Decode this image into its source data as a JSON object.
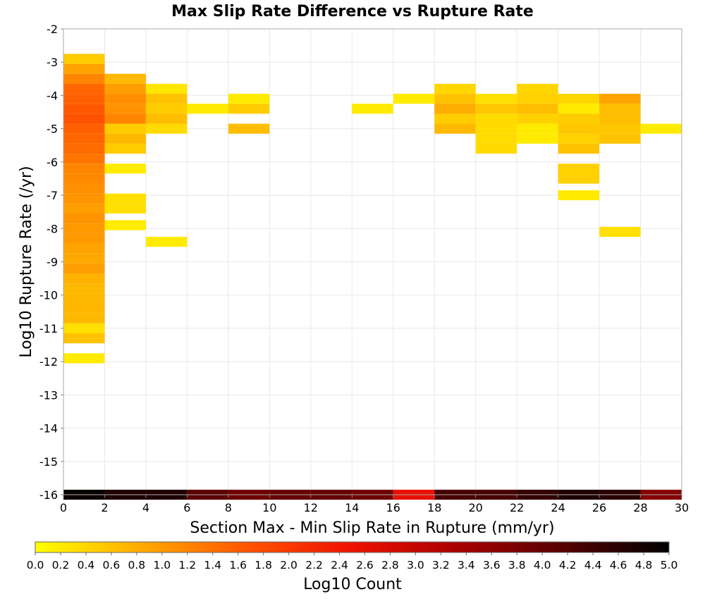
{
  "chart_data": {
    "type": "heatmap",
    "title": "Max Slip Rate Difference vs Rupture Rate",
    "xlabel": "Section Max - Min Slip Rate in Rupture (mm/yr)",
    "ylabel": "Log10 Rupture Rate (/yr)",
    "xlim": [
      0,
      30
    ],
    "ylim": [
      -16,
      -2
    ],
    "x_ticks": [
      "0",
      "2",
      "4",
      "6",
      "8",
      "10",
      "12",
      "14",
      "16",
      "18",
      "20",
      "22",
      "24",
      "26",
      "28",
      "30"
    ],
    "y_ticks": [
      "-2",
      "-3",
      "-4",
      "-5",
      "-6",
      "-7",
      "-8",
      "-9",
      "-10",
      "-11",
      "-12",
      "-13",
      "-14",
      "-15",
      "-16"
    ],
    "grid": true,
    "bin_width": 2,
    "bin_height": 0.3,
    "colorbar": {
      "label": "Log10 Count",
      "min": 0.0,
      "max": 5.0,
      "ticks": [
        "0.0",
        "0.2",
        "0.4",
        "0.6",
        "0.8",
        "1.0",
        "1.2",
        "1.4",
        "1.6",
        "1.8",
        "2.0",
        "2.2",
        "2.4",
        "2.6",
        "2.8",
        "3.0",
        "3.2",
        "3.4",
        "3.6",
        "3.8",
        "4.0",
        "4.2",
        "4.4",
        "4.6",
        "4.8",
        "5.0"
      ],
      "colors": [
        "#ffff00",
        "#ffaa00",
        "#ff5500",
        "#ee1100",
        "#aa0000",
        "#550000",
        "#000000"
      ]
    },
    "cells": [
      {
        "x": 0,
        "y": -2.9,
        "v": 0.5
      },
      {
        "x": 0,
        "y": -3.2,
        "v": 0.9
      },
      {
        "x": 0,
        "y": -3.5,
        "v": 1.2
      },
      {
        "x": 0,
        "y": -3.8,
        "v": 1.5
      },
      {
        "x": 0,
        "y": -4.1,
        "v": 1.55
      },
      {
        "x": 0,
        "y": -4.4,
        "v": 1.65
      },
      {
        "x": 0,
        "y": -4.7,
        "v": 1.7
      },
      {
        "x": 0,
        "y": -5.0,
        "v": 1.55
      },
      {
        "x": 0,
        "y": -5.3,
        "v": 1.5
      },
      {
        "x": 0,
        "y": -5.6,
        "v": 1.45
      },
      {
        "x": 0,
        "y": -5.9,
        "v": 1.35
      },
      {
        "x": 0,
        "y": -6.2,
        "v": 1.2
      },
      {
        "x": 0,
        "y": -6.5,
        "v": 1.15
      },
      {
        "x": 0,
        "y": -6.8,
        "v": 1.1
      },
      {
        "x": 0,
        "y": -7.1,
        "v": 1.05
      },
      {
        "x": 0,
        "y": -7.4,
        "v": 0.95
      },
      {
        "x": 0,
        "y": -7.7,
        "v": 1.05
      },
      {
        "x": 0,
        "y": -8.0,
        "v": 1.0
      },
      {
        "x": 0,
        "y": -8.3,
        "v": 1.0
      },
      {
        "x": 0,
        "y": -8.6,
        "v": 0.9
      },
      {
        "x": 0,
        "y": -8.9,
        "v": 0.85
      },
      {
        "x": 0,
        "y": -9.2,
        "v": 0.95
      },
      {
        "x": 0,
        "y": -9.5,
        "v": 0.75
      },
      {
        "x": 0,
        "y": -9.8,
        "v": 0.7
      },
      {
        "x": 0,
        "y": -10.1,
        "v": 0.7
      },
      {
        "x": 0,
        "y": -10.4,
        "v": 0.7
      },
      {
        "x": 0,
        "y": -10.7,
        "v": 0.7
      },
      {
        "x": 0,
        "y": -11.0,
        "v": 0.3
      },
      {
        "x": 0,
        "y": -11.3,
        "v": 0.6
      },
      {
        "x": 0,
        "y": -11.9,
        "v": 0.2
      },
      {
        "x": 2,
        "y": -3.5,
        "v": 0.7
      },
      {
        "x": 2,
        "y": -3.8,
        "v": 0.95
      },
      {
        "x": 2,
        "y": -4.1,
        "v": 1.1
      },
      {
        "x": 2,
        "y": -4.4,
        "v": 1.05
      },
      {
        "x": 2,
        "y": -4.7,
        "v": 1.2
      },
      {
        "x": 2,
        "y": -5.0,
        "v": 0.5
      },
      {
        "x": 2,
        "y": -5.3,
        "v": 0.7
      },
      {
        "x": 2,
        "y": -5.6,
        "v": 0.5
      },
      {
        "x": 2,
        "y": -6.2,
        "v": 0.2
      },
      {
        "x": 2,
        "y": -7.1,
        "v": 0.3
      },
      {
        "x": 2,
        "y": -7.4,
        "v": 0.3
      },
      {
        "x": 2,
        "y": -7.9,
        "v": 0.2
      },
      {
        "x": 4,
        "y": -3.8,
        "v": 0.25
      },
      {
        "x": 4,
        "y": -4.1,
        "v": 0.6
      },
      {
        "x": 4,
        "y": -4.4,
        "v": 0.5
      },
      {
        "x": 4,
        "y": -4.7,
        "v": 0.65
      },
      {
        "x": 4,
        "y": -5.0,
        "v": 0.35
      },
      {
        "x": 4,
        "y": -8.4,
        "v": 0.2
      },
      {
        "x": 6,
        "y": -4.4,
        "v": 0.2
      },
      {
        "x": 8,
        "y": -4.1,
        "v": 0.2
      },
      {
        "x": 8,
        "y": -4.4,
        "v": 0.5
      },
      {
        "x": 8,
        "y": -5.0,
        "v": 0.65
      },
      {
        "x": 14,
        "y": -4.4,
        "v": 0.2
      },
      {
        "x": 16,
        "y": -4.1,
        "v": 0.2
      },
      {
        "x": 18,
        "y": -3.8,
        "v": 0.4
      },
      {
        "x": 18,
        "y": -4.1,
        "v": 0.6
      },
      {
        "x": 18,
        "y": -4.4,
        "v": 0.8
      },
      {
        "x": 18,
        "y": -4.7,
        "v": 0.5
      },
      {
        "x": 18,
        "y": -5.0,
        "v": 0.7
      },
      {
        "x": 20,
        "y": -4.1,
        "v": 0.3
      },
      {
        "x": 20,
        "y": -4.4,
        "v": 0.55
      },
      {
        "x": 20,
        "y": -4.7,
        "v": 0.35
      },
      {
        "x": 20,
        "y": -5.0,
        "v": 0.35
      },
      {
        "x": 20,
        "y": -5.3,
        "v": 0.35
      },
      {
        "x": 20,
        "y": -5.6,
        "v": 0.35
      },
      {
        "x": 22,
        "y": -3.8,
        "v": 0.4
      },
      {
        "x": 22,
        "y": -4.1,
        "v": 0.45
      },
      {
        "x": 22,
        "y": -4.4,
        "v": 0.65
      },
      {
        "x": 22,
        "y": -4.7,
        "v": 0.45
      },
      {
        "x": 22,
        "y": -5.0,
        "v": 0.2
      },
      {
        "x": 22,
        "y": -5.3,
        "v": 0.2
      },
      {
        "x": 24,
        "y": -4.1,
        "v": 0.4
      },
      {
        "x": 24,
        "y": -4.4,
        "v": 0.2
      },
      {
        "x": 24,
        "y": -4.7,
        "v": 0.5
      },
      {
        "x": 24,
        "y": -5.0,
        "v": 0.55
      },
      {
        "x": 24,
        "y": -5.3,
        "v": 0.45
      },
      {
        "x": 24,
        "y": -5.6,
        "v": 0.6
      },
      {
        "x": 24,
        "y": -6.2,
        "v": 0.45
      },
      {
        "x": 24,
        "y": -6.5,
        "v": 0.45
      },
      {
        "x": 24,
        "y": -7.0,
        "v": 0.2
      },
      {
        "x": 26,
        "y": -4.1,
        "v": 0.9
      },
      {
        "x": 26,
        "y": -4.4,
        "v": 0.65
      },
      {
        "x": 26,
        "y": -4.7,
        "v": 0.65
      },
      {
        "x": 26,
        "y": -5.0,
        "v": 0.55
      },
      {
        "x": 26,
        "y": -5.3,
        "v": 0.6
      },
      {
        "x": 26,
        "y": -8.1,
        "v": 0.3
      },
      {
        "x": 28,
        "y": -5.0,
        "v": 0.2
      },
      {
        "x": 0,
        "y": -16.0,
        "v": 4.9
      },
      {
        "x": 2,
        "y": -16.0,
        "v": 4.7
      },
      {
        "x": 4,
        "y": -16.0,
        "v": 4.7
      },
      {
        "x": 6,
        "y": -16.0,
        "v": 4.1
      },
      {
        "x": 8,
        "y": -16.0,
        "v": 3.9
      },
      {
        "x": 10,
        "y": -16.0,
        "v": 4.0
      },
      {
        "x": 12,
        "y": -16.0,
        "v": 4.0
      },
      {
        "x": 14,
        "y": -16.0,
        "v": 3.9
      },
      {
        "x": 16,
        "y": -16.0,
        "v": 2.55
      },
      {
        "x": 18,
        "y": -16.0,
        "v": 4.3
      },
      {
        "x": 20,
        "y": -16.0,
        "v": 4.3
      },
      {
        "x": 22,
        "y": -16.0,
        "v": 4.5
      },
      {
        "x": 24,
        "y": -16.0,
        "v": 4.7
      },
      {
        "x": 26,
        "y": -16.0,
        "v": 4.6
      },
      {
        "x": 28,
        "y": -16.0,
        "v": 3.7
      }
    ]
  }
}
